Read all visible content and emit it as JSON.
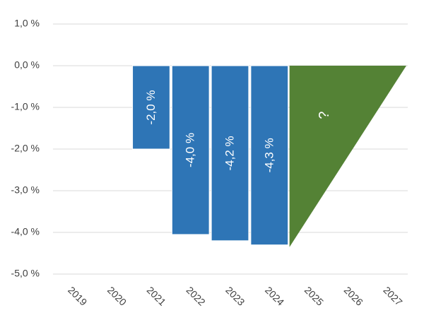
{
  "chart_data": {
    "type": "bar",
    "categories": [
      "2019",
      "2020",
      "2021",
      "2022",
      "2023",
      "2024",
      "2025",
      "2026",
      "2027"
    ],
    "values": [
      null,
      null,
      -2.0,
      -4.05,
      -4.2,
      -4.3,
      null,
      null,
      null
    ],
    "value_labels": [
      null,
      null,
      "-2,0 %",
      "-4,0 %",
      "-4,2 %",
      "-4,3 %",
      null,
      null,
      null
    ],
    "color": "#2e75b6",
    "ylim": [
      -5,
      1
    ],
    "yticks": [
      {
        "value": -5,
        "label": "-5,0 %"
      },
      {
        "value": -4,
        "label": "-4,0 %"
      },
      {
        "value": -3,
        "label": "-3,0 %"
      },
      {
        "value": -2,
        "label": "-2,0 %"
      },
      {
        "value": -1,
        "label": "-1,0 %"
      },
      {
        "value": 0,
        "label": "0,0 %"
      },
      {
        "value": 1,
        "label": "1,0 %"
      }
    ],
    "grid": true,
    "annotation": "?",
    "annotation_color": "#548235"
  }
}
